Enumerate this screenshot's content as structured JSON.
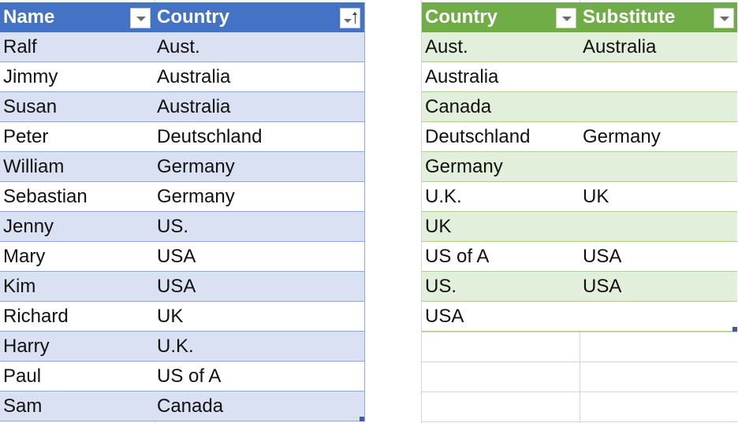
{
  "table1": {
    "headers": [
      "Name",
      "Country"
    ],
    "rows": [
      [
        "Ralf",
        "Aust."
      ],
      [
        "Jimmy",
        "Australia"
      ],
      [
        "Susan",
        "Australia"
      ],
      [
        "Peter",
        "Deutschland"
      ],
      [
        "William",
        "Germany"
      ],
      [
        "Sebastian",
        "Germany"
      ],
      [
        "Jenny",
        "US."
      ],
      [
        "Mary",
        "USA"
      ],
      [
        "Kim",
        "USA"
      ],
      [
        "Richard",
        "UK"
      ],
      [
        "Harry",
        "U.K."
      ],
      [
        "Paul",
        "US of A"
      ],
      [
        "Sam",
        "Canada"
      ]
    ],
    "sorted_column": "Country",
    "header_color": "#4472c4",
    "band_color": "#d9e1f2"
  },
  "table2": {
    "headers": [
      "Country",
      "Substitute"
    ],
    "rows": [
      [
        "Aust.",
        "Australia"
      ],
      [
        "Australia",
        ""
      ],
      [
        "Canada",
        ""
      ],
      [
        "Deutschland",
        "Germany"
      ],
      [
        "Germany",
        ""
      ],
      [
        "U.K.",
        "UK"
      ],
      [
        "UK",
        ""
      ],
      [
        "US of A",
        "USA"
      ],
      [
        "US.",
        "USA"
      ],
      [
        "USA",
        ""
      ]
    ],
    "header_color": "#70ad47",
    "band_color": "#e2efda"
  },
  "icons": {
    "filter": "filter-dropdown-icon",
    "sort": "sort-ascending-icon"
  }
}
